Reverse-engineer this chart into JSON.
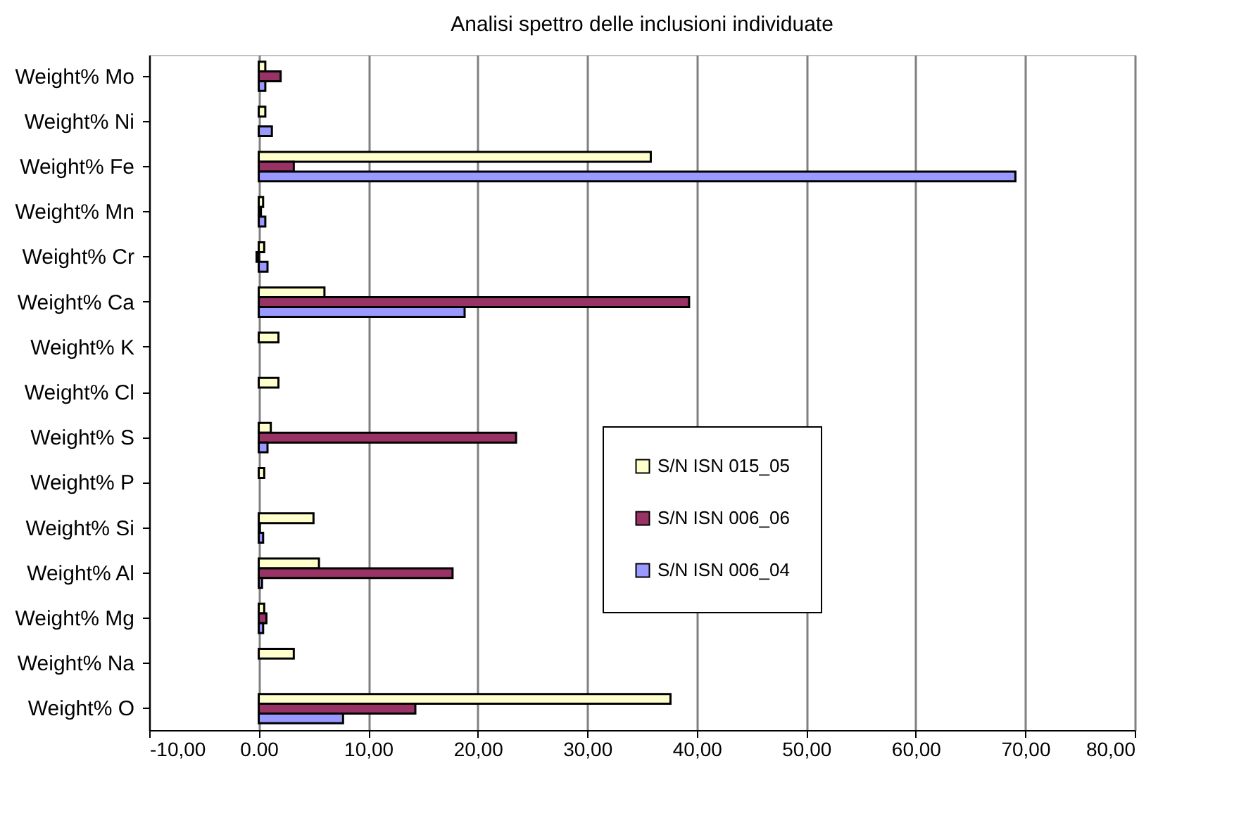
{
  "chart_data": {
    "type": "bar",
    "orientation": "horizontal",
    "title": "Analisi spettro delle inclusioni individuate",
    "categories": [
      "Weight% Mo",
      "Weight% Ni",
      "Weight% Fe",
      "Weight% Mn",
      "Weight% Cr",
      "Weight% Ca",
      "Weight% K",
      "Weight% Cl",
      "Weight% S",
      "Weight% P",
      "Weight% Si",
      "Weight% Al",
      "Weight% Mg",
      "Weight% Na",
      "Weight% O"
    ],
    "series": [
      {
        "name": "S/N ISN 015_05",
        "color": "#ffffcc",
        "values": [
          0.6,
          0.6,
          35.8,
          0.4,
          0.5,
          6.0,
          1.8,
          1.8,
          1.1,
          0.5,
          5.0,
          5.5,
          0.5,
          3.2,
          37.6
        ]
      },
      {
        "name": "S/N ISN 006_06",
        "color": "#993366",
        "values": [
          2.0,
          null,
          3.2,
          0.2,
          -0.2,
          39.3,
          null,
          null,
          23.5,
          null,
          0.1,
          17.7,
          0.7,
          null,
          14.3
        ]
      },
      {
        "name": "S/N ISN 006_04",
        "color": "#9999ff",
        "values": [
          0.6,
          1.2,
          69.1,
          0.6,
          0.8,
          18.8,
          null,
          null,
          0.8,
          null,
          0.4,
          0.3,
          0.4,
          null,
          7.7
        ]
      }
    ],
    "xlim": [
      -10,
      80
    ],
    "xticks": [
      {
        "value": -10,
        "label": "-10,00"
      },
      {
        "value": 0,
        "label": "0.00"
      },
      {
        "value": 10,
        "label": "10,00"
      },
      {
        "value": 20,
        "label": "20,00"
      },
      {
        "value": 30,
        "label": "30,00"
      },
      {
        "value": 40,
        "label": "40,00"
      },
      {
        "value": 50,
        "label": "50,00"
      },
      {
        "value": 60,
        "label": "60,00"
      },
      {
        "value": 70,
        "label": "70,00"
      },
      {
        "value": 80,
        "label": "80,00"
      }
    ],
    "grid": "x",
    "legend": "right"
  }
}
